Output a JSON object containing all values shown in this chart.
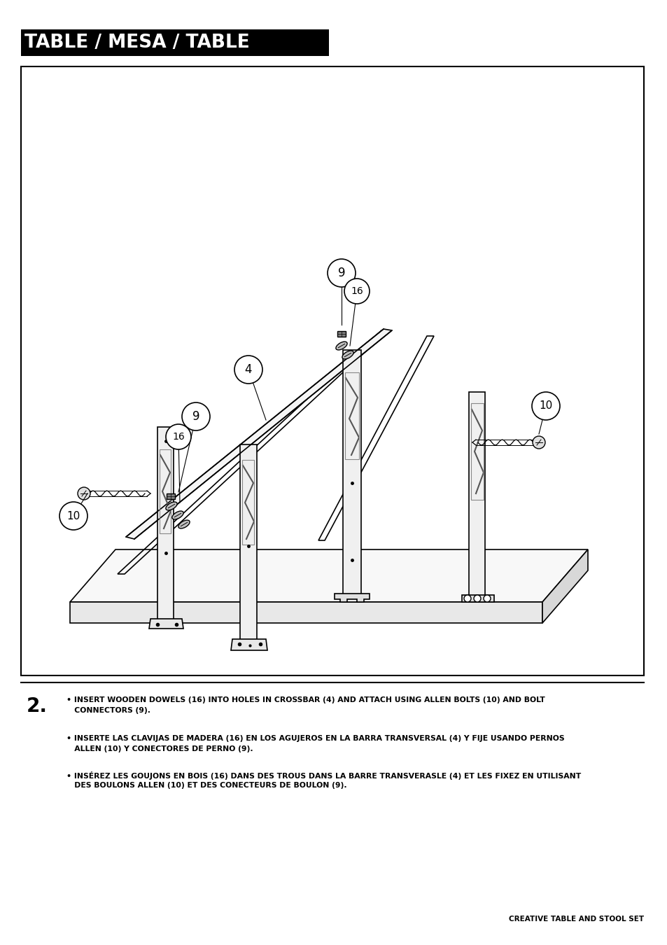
{
  "title": "TABLE / MESA / TABLE",
  "title_bg": "#000000",
  "title_color": "#ffffff",
  "page_bg": "#ffffff",
  "step_number": "2.",
  "instructions": [
    "• INSERT WOODEN DOWELS (16) INTO HOLES IN CROSSBAR (4) AND ATTACH USING ALLEN BOLTS (10) AND BOLT\n   CONNECTORS (9).",
    "• INSERTE LAS CLAVIJAS DE MADERA (16) EN LOS AGUJEROS EN LA BARRA TRANSVERSAL (4) Y FIJE USANDO PERNOS\n   ALLEN (10) Y CONECTORES DE PERNO (9).",
    "• INSÉREZ LES GOUJONS EN BOIS (16) DANS DES TROUS DANS LA BARRE TRANSVERASLE (4) ET LES FIXEZ EN UTILISANT\n   DES BOULONS ALLEN (10) ET DES CONECTEURS DE BOULON (9)."
  ],
  "footer": "CREATIVE TABLE AND STOOL SET"
}
